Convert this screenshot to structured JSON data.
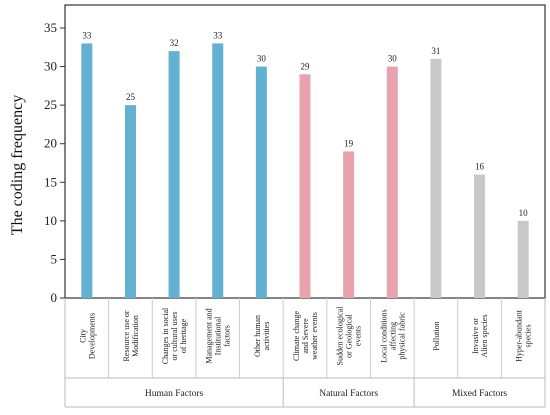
{
  "chart_data": {
    "type": "bar",
    "ylabel": "The coding frequency",
    "xlabel": "",
    "ylim": [
      0,
      35
    ],
    "yticks": [
      0,
      5,
      10,
      15,
      20,
      25,
      30,
      35
    ],
    "grid": false,
    "categories": [
      [
        "City",
        "Developments"
      ],
      [
        "Resource use or",
        "Modification"
      ],
      [
        "Changes in social",
        "or cultural uses",
        "of heritage"
      ],
      [
        "Management and",
        "Institutional",
        "factors"
      ],
      [
        "Other human",
        "activities"
      ],
      [
        "Climate change",
        "and Severe",
        "weather events"
      ],
      [
        "Sudden ecological",
        "or Geological",
        "events"
      ],
      [
        "Local conditions",
        "affecting",
        "physical fabric"
      ],
      [
        "Pollution"
      ],
      [
        "Invasive or",
        "Alien species"
      ],
      [
        "Hyper-abundant",
        "species"
      ]
    ],
    "values": [
      33,
      25,
      32,
      33,
      30,
      29,
      19,
      30,
      31,
      16,
      10
    ],
    "groups": [
      {
        "name": "Human Factors",
        "start": 0,
        "end": 4,
        "color": "#62b1d3"
      },
      {
        "name": "Natural Factors",
        "start": 5,
        "end": 7,
        "color": "#e8a3ad"
      },
      {
        "name": "Mixed Factors",
        "start": 8,
        "end": 10,
        "color": "#c9c9c9"
      }
    ]
  }
}
